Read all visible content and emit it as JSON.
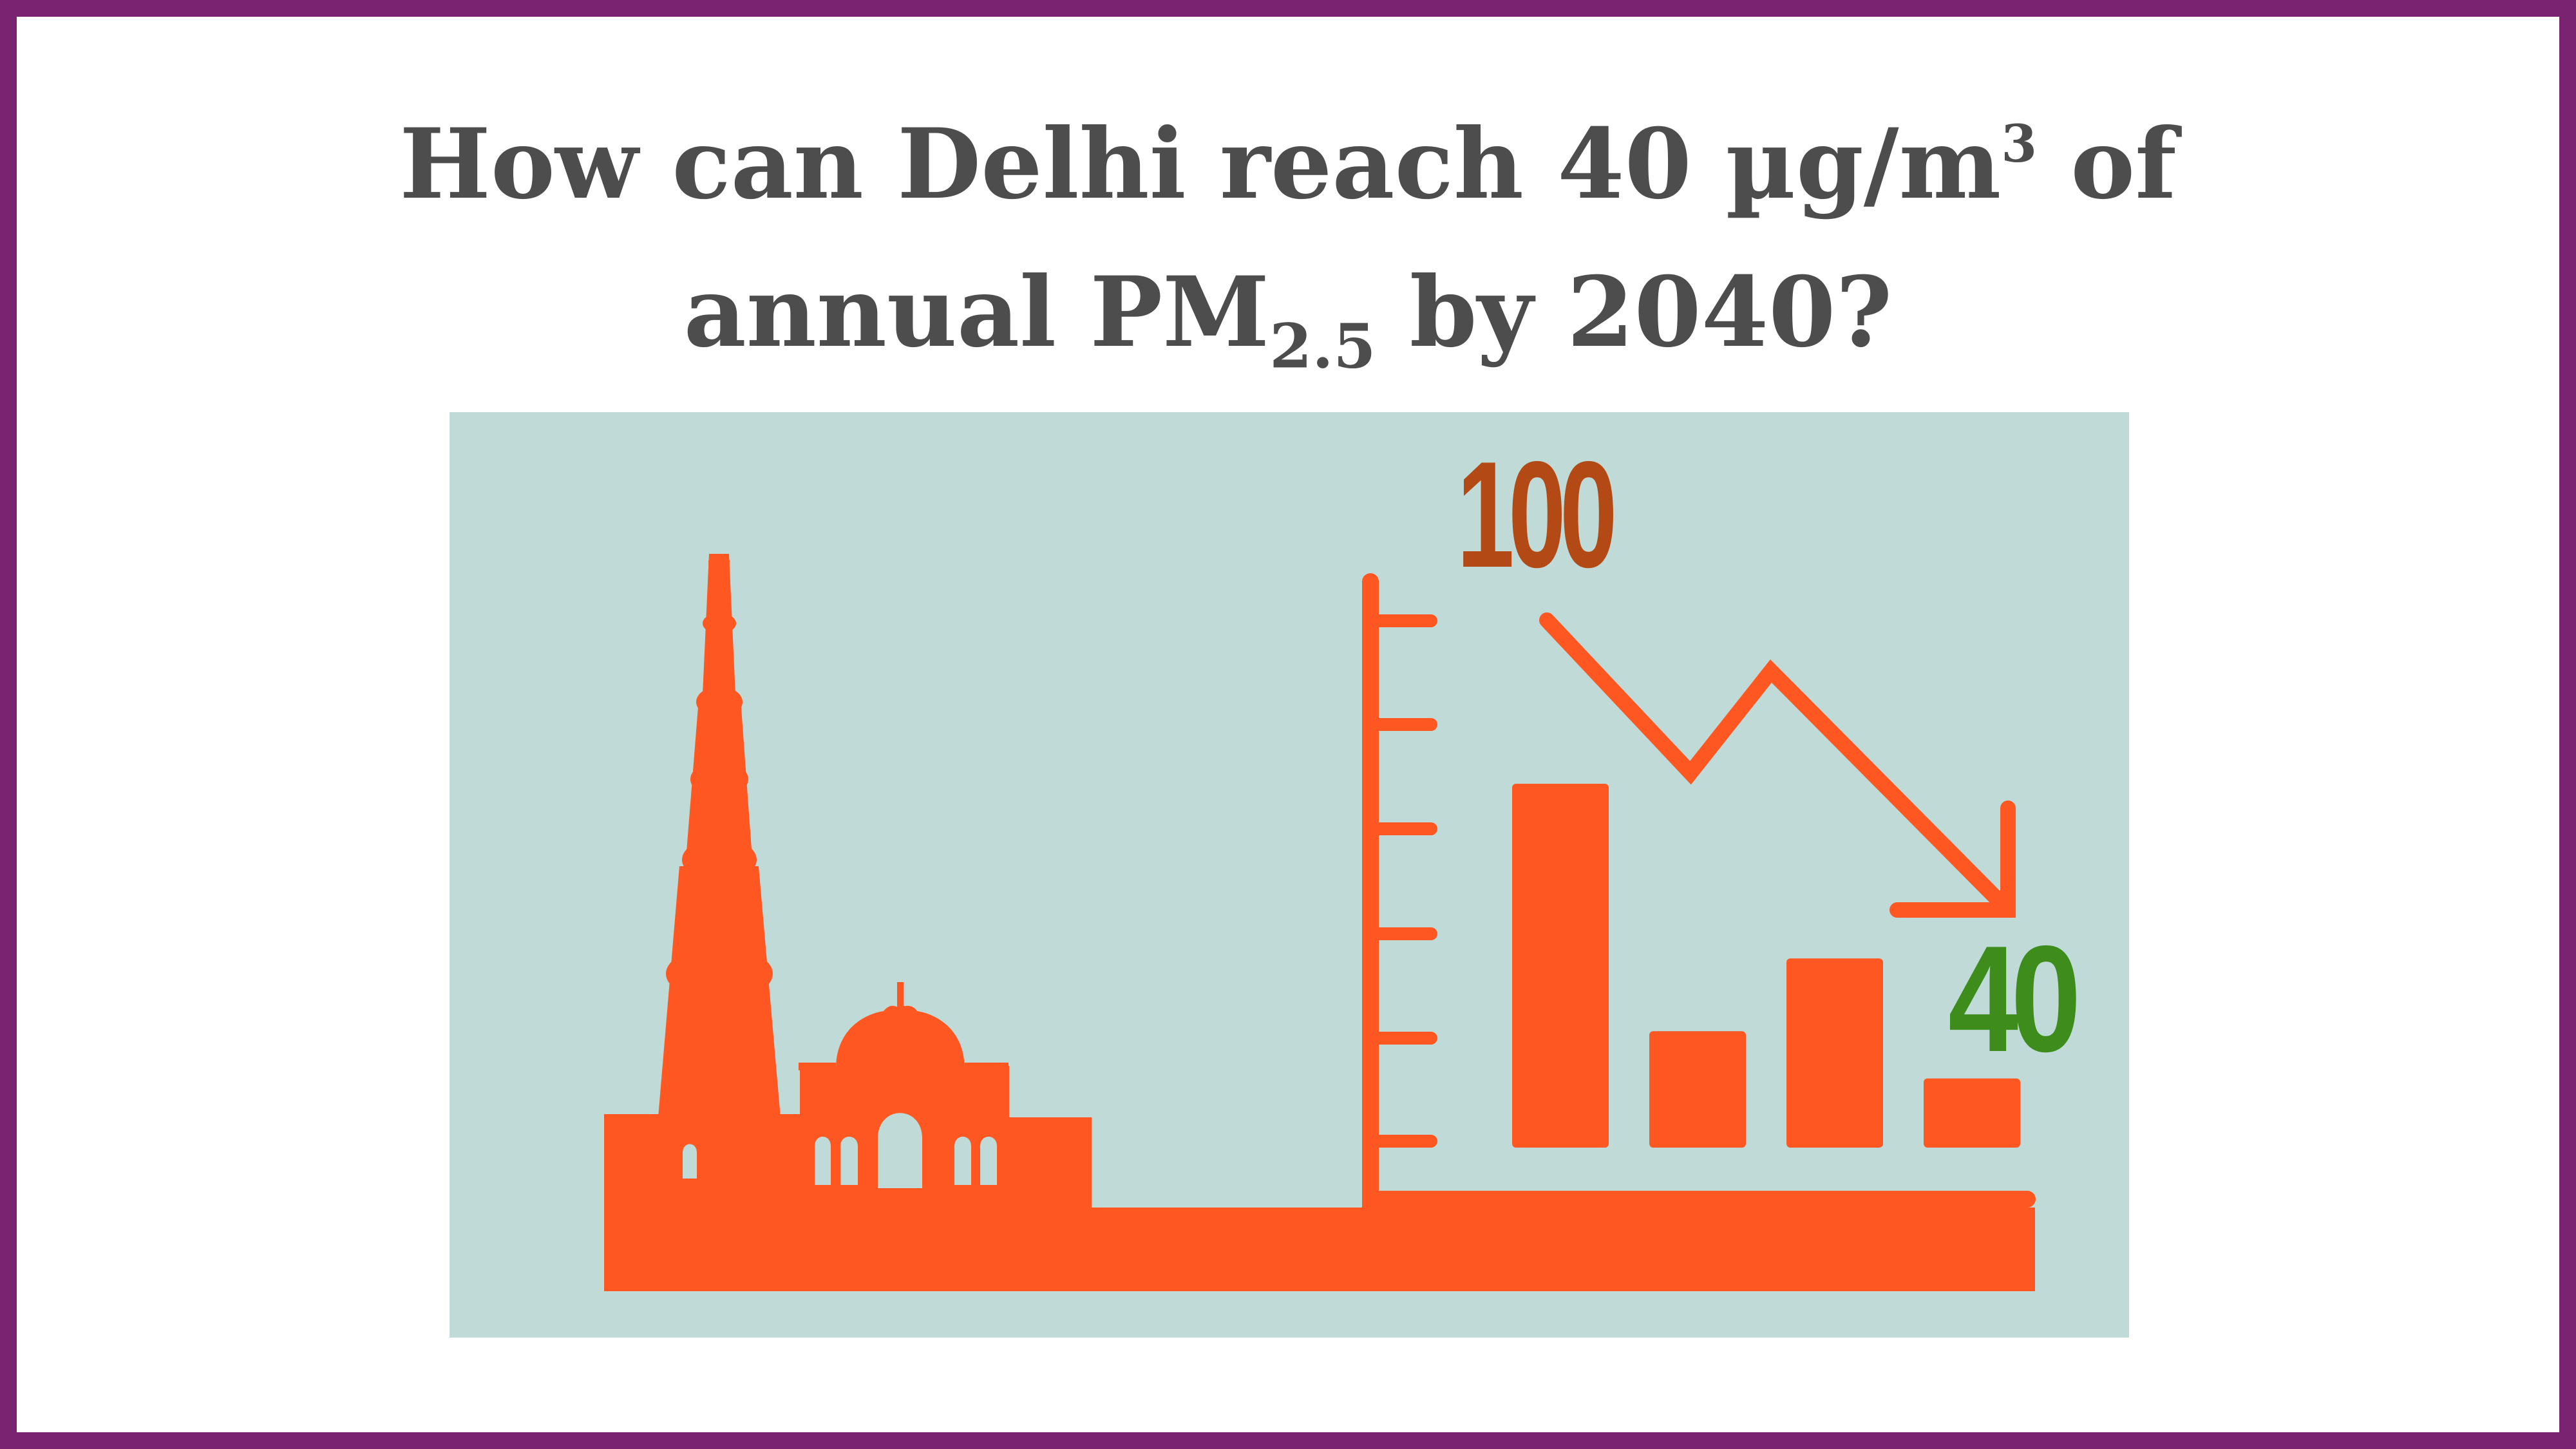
{
  "title": {
    "line1": "How can Delhi reach 40 µg/m",
    "line1_sup": "3",
    "line1_end": " of",
    "line2_start": "annual PM",
    "line2_sub": "2.5",
    "line2_end": " by 2040?"
  },
  "illustration": {
    "start_label": "100",
    "end_label": "40",
    "bar_heights_relative": [
      1.0,
      0.32,
      0.52,
      0.19
    ]
  },
  "colors": {
    "border": "#7a2370",
    "panel": "#c0dbd7",
    "silhouette": "#ff5722",
    "start_label": "#b34a16",
    "end_label": "#3e8c1c",
    "title_text": "#4d4d4d"
  },
  "icons": [
    "qutub-minar-icon",
    "mosque-dome-icon",
    "trend-down-arrow-icon",
    "bar-chart-icon"
  ]
}
